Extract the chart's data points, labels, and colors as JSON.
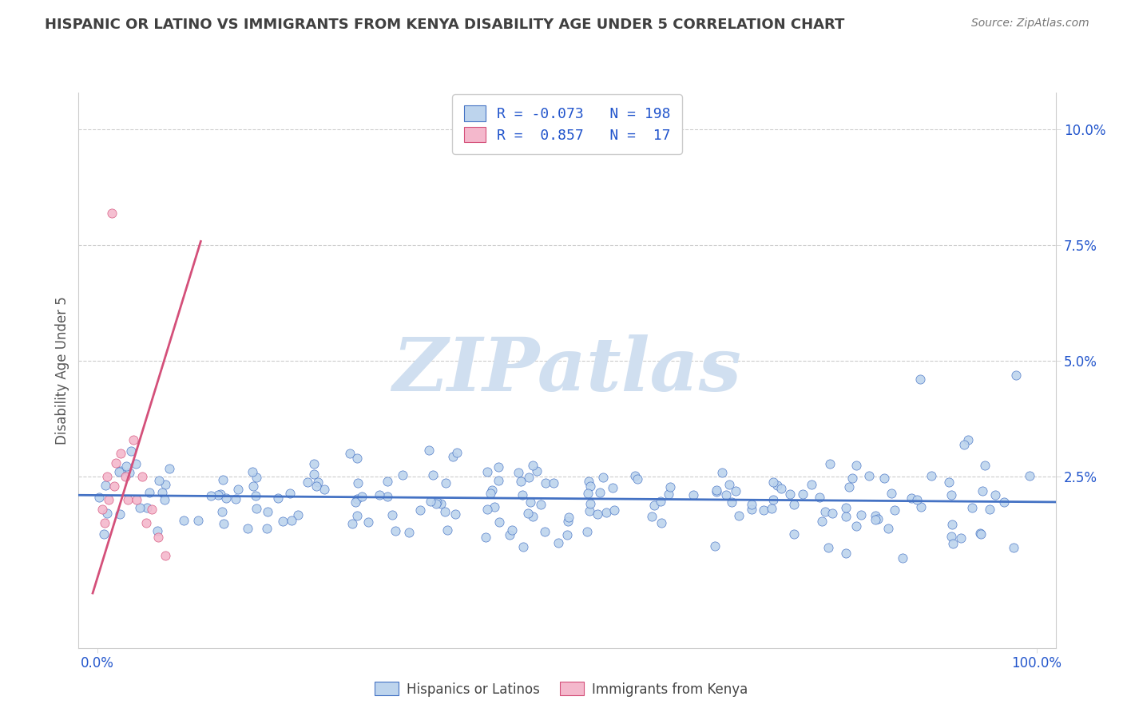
{
  "title": "HISPANIC OR LATINO VS IMMIGRANTS FROM KENYA DISABILITY AGE UNDER 5 CORRELATION CHART",
  "source": "Source: ZipAtlas.com",
  "ylabel": "Disability Age Under 5",
  "xlim": [
    -0.02,
    1.02
  ],
  "ylim": [
    -0.012,
    0.108
  ],
  "xtick_positions": [
    0.0,
    1.0
  ],
  "xtick_labels": [
    "0.0%",
    "100.0%"
  ],
  "ytick_positions": [
    0.025,
    0.05,
    0.075,
    0.1
  ],
  "ytick_labels": [
    "2.5%",
    "5.0%",
    "7.5%",
    "10.0%"
  ],
  "r1": -0.073,
  "n1": 198,
  "r2": 0.857,
  "n2": 17,
  "color_blue_face": "#bdd4ed",
  "color_blue_edge": "#4472c4",
  "color_pink_face": "#f4b8cc",
  "color_pink_edge": "#d4507a",
  "line_blue_color": "#4472c4",
  "line_pink_color": "#d4507a",
  "title_color": "#404040",
  "source_color": "#777777",
  "watermark_text": "ZIPatlas",
  "watermark_color": "#d0dff0",
  "grid_color": "#cccccc",
  "legend_color": "#2255cc",
  "tick_color": "#2255cc",
  "ylabel_color": "#555555",
  "bg_color": "#ffffff",
  "legend1_r": "-0.073",
  "legend1_n": "198",
  "legend2_r": "0.857",
  "legend2_n": "17",
  "bottom_legend1": "Hispanics or Latinos",
  "bottom_legend2": "Immigrants from Kenya"
}
